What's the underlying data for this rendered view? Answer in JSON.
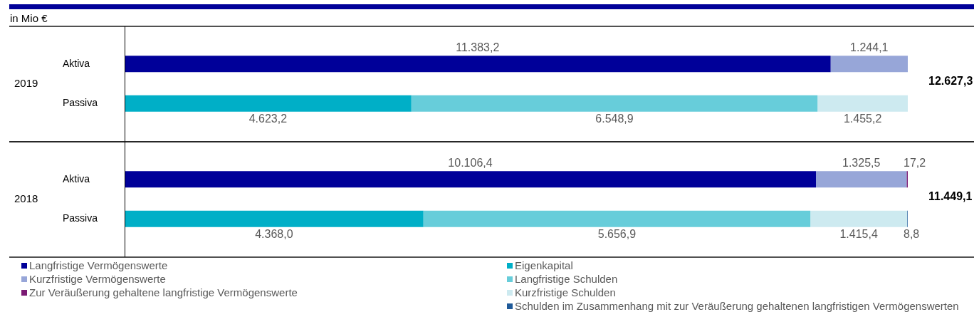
{
  "chart_data": [
    {
      "type": "bar",
      "orientation": "horizontal",
      "stacked": true,
      "xlabel": "in Mio €",
      "ylabel": "2019",
      "categories": [
        "Aktiva",
        "Passiva"
      ],
      "xlim": [
        0,
        12627.3
      ],
      "tick_labels": "y",
      "annotations": [
        "12.627,3"
      ],
      "series": [
        {
          "color": "#000099",
          "values": [
            11383.2,
            null
          ],
          "value_labels": [
            "11.383,2",
            null
          ]
        },
        {
          "color": "#97a6d8",
          "values": [
            1244.1,
            null
          ],
          "value_labels": [
            "1.244,1",
            null
          ]
        },
        {
          "color": "#00afc7",
          "values": [
            null,
            4623.2
          ],
          "value_labels": [
            null,
            "4.623,2"
          ]
        },
        {
          "color": "#67cdda",
          "values": [
            null,
            6548.9
          ],
          "value_labels": [
            null,
            "6.548,9"
          ]
        },
        {
          "color": "#cdeaf0",
          "values": [
            null,
            1455.2
          ],
          "value_labels": [
            null,
            "1.455,2"
          ]
        }
      ]
    },
    {
      "type": "bar",
      "orientation": "horizontal",
      "stacked": true,
      "ylabel": "2018",
      "categories": [
        "Aktiva",
        "Passiva"
      ],
      "xlim": [
        0,
        11449.1
      ],
      "tick_labels": "y",
      "legend": "bottom",
      "annotations": [
        "11.449,1"
      ],
      "series": [
        {
          "name": "Langfristige Vermögenswerte",
          "color": "#000099",
          "values": [
            10106.4,
            null
          ],
          "value_labels": [
            "10.106,4",
            null
          ]
        },
        {
          "name": "Kurzfristige Vermögenswerte",
          "color": "#97a6d8",
          "values": [
            1325.5,
            null
          ],
          "value_labels": [
            "1.325,5",
            null
          ]
        },
        {
          "name": "Zur Veräußerung gehaltene langfristige Vermögenswerte",
          "color": "#7b1b74",
          "values": [
            17.2,
            null
          ],
          "value_labels": [
            "17,2",
            null
          ]
        },
        {
          "name": "Eigenkapital",
          "color": "#00afc7",
          "values": [
            null,
            4368.0
          ],
          "value_labels": [
            null,
            "4.368,0"
          ]
        },
        {
          "name": "Langfristige Schulden",
          "color": "#67cdda",
          "values": [
            null,
            5656.9
          ],
          "value_labels": [
            null,
            "5.656,9"
          ]
        },
        {
          "name": "Kurzfristige Schulden",
          "color": "#cdeaf0",
          "values": [
            null,
            1415.4
          ],
          "value_labels": [
            null,
            "1.415,4"
          ]
        },
        {
          "name": "Schulden im Zusammenhang mit zur Veräußerung gehaltenen langfristigen Vermögenswerten",
          "color": "#1f5a99",
          "values": [
            null,
            8.8
          ],
          "value_labels": [
            null,
            "8,8"
          ]
        }
      ]
    }
  ]
}
